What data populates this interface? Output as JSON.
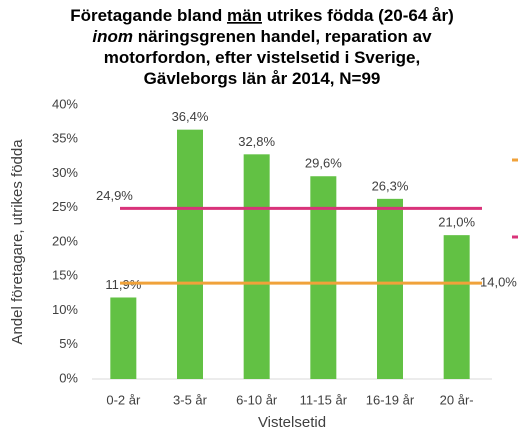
{
  "chart_data": {
    "type": "bar",
    "title_lines": [
      [
        "Företagande bland ",
        "män",
        " utrikes födda (20-64 år)"
      ],
      [
        "inom",
        " näringsgrenen handel, reparation av"
      ],
      [
        "motorfordon, efter vistelsetid i Sverige,"
      ],
      [
        "Gävleborgs län år 2014, N=99"
      ]
    ],
    "x_label": "Vistelsetid",
    "y_label": "Andel företagare, utrikes födda",
    "categories": [
      "0-2 år",
      "3-5 år",
      "6-10 år",
      "11-15 år",
      "16-19 år",
      "20 år-"
    ],
    "values": [
      11.9,
      36.4,
      32.8,
      29.6,
      26.3,
      21.0
    ],
    "value_labels": [
      "11,9%",
      "36,4%",
      "32,8%",
      "29,6%",
      "26,3%",
      "21,0%"
    ],
    "color": "#62c144",
    "reference_lines": [
      {
        "value": 24.9,
        "label": "24,9%",
        "color": "#d9337a"
      },
      {
        "value": 14.0,
        "label": "14,0%",
        "color": "#f0a23a"
      }
    ],
    "ylim": [
      0,
      40
    ],
    "yticks": [
      {
        "value": 0,
        "label": "0%"
      },
      {
        "value": 5,
        "label": "5%"
      },
      {
        "value": 10,
        "label": "10%"
      },
      {
        "value": 15,
        "label": "15%"
      },
      {
        "value": 20,
        "label": "20%"
      },
      {
        "value": 25,
        "label": "25%"
      },
      {
        "value": 30,
        "label": "30%"
      },
      {
        "value": 35,
        "label": "35%"
      },
      {
        "value": 40,
        "label": "40%"
      }
    ],
    "grid": false
  }
}
